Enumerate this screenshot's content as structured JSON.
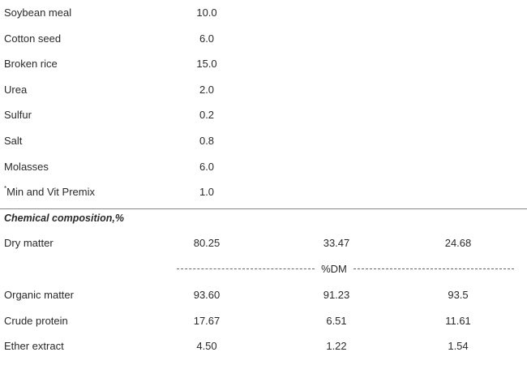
{
  "table": {
    "ingredient_rows": [
      {
        "label": "Soybean meal",
        "values": [
          "10.0"
        ]
      },
      {
        "label": "Cotton seed",
        "values": [
          "6.0"
        ]
      },
      {
        "label": "Broken rice",
        "values": [
          "15.0"
        ]
      },
      {
        "label": "Urea",
        "values": [
          "2.0"
        ]
      },
      {
        "label": "Sulfur",
        "values": [
          "0.2"
        ]
      },
      {
        "label": "Salt",
        "values": [
          "0.8"
        ]
      },
      {
        "label": "Molasses",
        "values": [
          "6.0"
        ]
      },
      {
        "marker": "*",
        "label": "Min and Vit Premix",
        "values": [
          "1.0"
        ]
      }
    ],
    "section_title": "Chemical composition,%",
    "dry_matter_row": {
      "label": "Dry matter",
      "values": [
        "80.25",
        "33.47",
        "24.68"
      ]
    },
    "unit_divider": "%DM",
    "composition_rows": [
      {
        "label": "Organic matter",
        "values": [
          "93.60",
          "91.23",
          "93.5"
        ]
      },
      {
        "label": "Crude protein",
        "values": [
          "17.67",
          "6.51",
          "11.61"
        ]
      },
      {
        "label": "Ether extract",
        "values": [
          "4.50",
          "1.22",
          "1.54"
        ]
      }
    ]
  }
}
